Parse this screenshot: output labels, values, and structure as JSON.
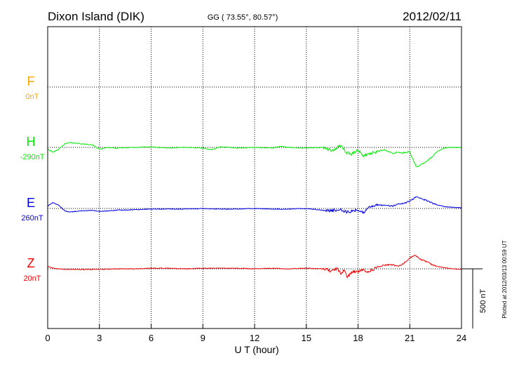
{
  "header": {
    "station": "Dixon Island (DIK)",
    "coords": "GG ( 73.55°,  80.57°)",
    "date": "2012/02/11"
  },
  "footer": {
    "plotted": "Plotted at 2012/03/13 00:59 UT"
  },
  "chart_data": {
    "type": "line",
    "xlabel": "U T (hour)",
    "xlim": [
      0,
      24
    ],
    "x_ticks": [
      0,
      3,
      6,
      9,
      12,
      15,
      18,
      21,
      24
    ],
    "scale_bar": {
      "value": 500,
      "label": "500 nT"
    },
    "grid": true,
    "series": [
      {
        "name": "F",
        "baseline": "0nT",
        "color": "#FFA500",
        "x": [],
        "y": []
      },
      {
        "name": "H",
        "baseline": "-290nT",
        "color": "#00EE00",
        "x": [
          0,
          0.3,
          0.6,
          1.0,
          1.3,
          1.6,
          2.0,
          2.3,
          2.6,
          3.0,
          3.5,
          4,
          5,
          6,
          7,
          8,
          9,
          9.5,
          10,
          11,
          12,
          13,
          13.5,
          14,
          15,
          16,
          16.5,
          17,
          17.3,
          17.6,
          18,
          18.3,
          18.6,
          19,
          19.5,
          20,
          20.3,
          20.6,
          21,
          21.2,
          21.4,
          21.7,
          22,
          22.3,
          22.6,
          23,
          23.5,
          24
        ],
        "y": [
          -15,
          -40,
          -20,
          30,
          40,
          35,
          30,
          25,
          20,
          -15,
          0,
          -5,
          0,
          5,
          -5,
          0,
          -5,
          -20,
          5,
          -5,
          0,
          -5,
          10,
          0,
          -5,
          0,
          -30,
          20,
          -40,
          -60,
          -20,
          -70,
          -55,
          -40,
          -20,
          -50,
          -40,
          -45,
          -35,
          -110,
          -165,
          -140,
          -115,
          -80,
          -35,
          -5,
          0,
          0
        ]
      },
      {
        "name": "E",
        "baseline": "260nT",
        "color": "#0000EE",
        "x": [
          0,
          0.3,
          0.6,
          1.0,
          1.3,
          1.6,
          2,
          2.5,
          3,
          4,
          5,
          6,
          7,
          8,
          9,
          10,
          11,
          12,
          13,
          14,
          15,
          16,
          16.5,
          17,
          17.3,
          17.6,
          18,
          18.3,
          18.6,
          19,
          19.5,
          20,
          20.3,
          20.6,
          21,
          21.2,
          21.4,
          21.6,
          22,
          22.3,
          22.6,
          23,
          23.5,
          24
        ],
        "y": [
          20,
          50,
          30,
          -20,
          -30,
          -25,
          -20,
          -15,
          -25,
          -15,
          -10,
          -5,
          -5,
          -5,
          0,
          -5,
          -5,
          0,
          -5,
          -5,
          0,
          -15,
          -20,
          -5,
          -30,
          -25,
          -10,
          -40,
          15,
          25,
          30,
          20,
          35,
          40,
          60,
          80,
          105,
          85,
          65,
          45,
          30,
          15,
          10,
          5
        ]
      },
      {
        "name": "Z",
        "baseline": "20nT",
        "color": "#EE0000",
        "x": [
          0,
          0.3,
          0.6,
          1,
          2,
          3,
          4,
          5,
          6,
          7,
          8,
          9,
          10,
          11,
          12,
          13,
          14,
          15,
          16,
          16.5,
          16.8,
          17,
          17.2,
          17.4,
          17.6,
          18,
          18.3,
          18.6,
          19,
          19.5,
          20,
          20.3,
          20.6,
          21,
          21.3,
          21.6,
          22,
          22.3,
          22.6,
          23,
          23.5,
          24
        ],
        "y": [
          20,
          5,
          0,
          -5,
          -5,
          -5,
          0,
          0,
          5,
          5,
          0,
          5,
          5,
          5,
          0,
          5,
          0,
          5,
          0,
          -20,
          5,
          -40,
          -10,
          -70,
          -30,
          -20,
          -10,
          -25,
          5,
          30,
          35,
          20,
          40,
          90,
          115,
          80,
          60,
          35,
          20,
          10,
          0,
          -5
        ]
      }
    ]
  }
}
